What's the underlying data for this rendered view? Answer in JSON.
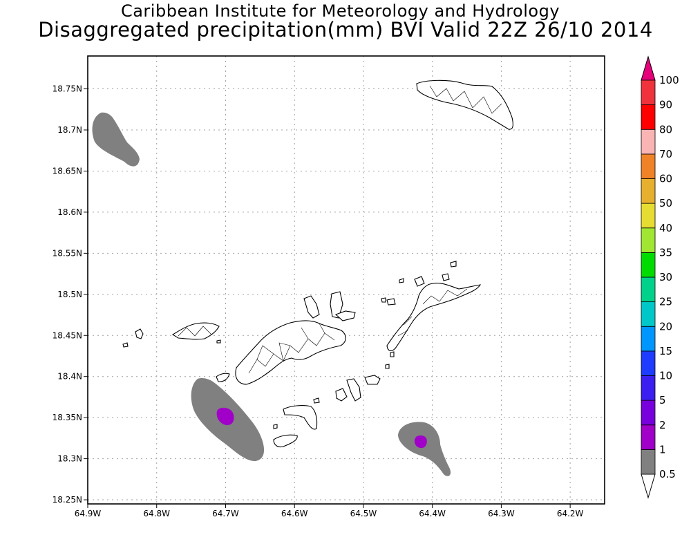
{
  "title_line1": "Caribbean Institute for Meteorology and Hydrology",
  "title_line2": "Disaggregated precipitation(mm) BVI Valid 22Z 26/10 2014",
  "map": {
    "lon_range": [
      -64.9,
      -64.15
    ],
    "lat_range": [
      18.245,
      18.79
    ],
    "grid": true,
    "x_ticks": [
      {
        "value": -64.9,
        "label": "64.9W"
      },
      {
        "value": -64.8,
        "label": "64.8W"
      },
      {
        "value": -64.7,
        "label": "64.7W"
      },
      {
        "value": -64.6,
        "label": "64.6W"
      },
      {
        "value": -64.5,
        "label": "64.5W"
      },
      {
        "value": -64.4,
        "label": "64.4W"
      },
      {
        "value": -64.3,
        "label": "64.3W"
      },
      {
        "value": -64.2,
        "label": "64.2W"
      }
    ],
    "y_ticks": [
      {
        "value": 18.25,
        "label": "18.25N"
      },
      {
        "value": 18.3,
        "label": "18.3N"
      },
      {
        "value": 18.35,
        "label": "18.35N"
      },
      {
        "value": 18.4,
        "label": "18.4N"
      },
      {
        "value": 18.45,
        "label": "18.45N"
      },
      {
        "value": 18.5,
        "label": "18.5N"
      },
      {
        "value": 18.55,
        "label": "18.55N"
      },
      {
        "value": 18.6,
        "label": "18.6N"
      },
      {
        "value": 18.65,
        "label": "18.65N"
      },
      {
        "value": 18.7,
        "label": "18.7N"
      },
      {
        "value": 18.75,
        "label": "18.75N"
      }
    ]
  },
  "colorbar": {
    "levels": [
      {
        "label": "0.5",
        "color": "#808080"
      },
      {
        "label": "1",
        "color": "#a000c8"
      },
      {
        "label": "2",
        "color": "#7800dc"
      },
      {
        "label": "5",
        "color": "#3c1ef0"
      },
      {
        "label": "10",
        "color": "#1e3cff"
      },
      {
        "label": "15",
        "color": "#0096ff"
      },
      {
        "label": "20",
        "color": "#00c8c8"
      },
      {
        "label": "25",
        "color": "#00d28c"
      },
      {
        "label": "30",
        "color": "#00dc00"
      },
      {
        "label": "35",
        "color": "#a0e632"
      },
      {
        "label": "40",
        "color": "#e6dc32"
      },
      {
        "label": "50",
        "color": "#e6af2d"
      },
      {
        "label": "60",
        "color": "#f08228"
      },
      {
        "label": "70",
        "color": "#fab4b4"
      },
      {
        "label": "80",
        "color": "#ff0000"
      },
      {
        "label": "90",
        "color": "#f0323c"
      },
      {
        "label": "100",
        "color": "#f01e78"
      }
    ],
    "under_color": "#ffffff",
    "over_color": "#e6007a"
  },
  "rain_areas": [
    {
      "level": "0.5-1",
      "color": "#808080"
    },
    {
      "level": "1-2",
      "color": "#a000c8"
    }
  ]
}
